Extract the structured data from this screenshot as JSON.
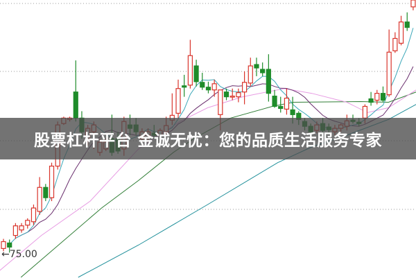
{
  "banner": {
    "text": "股票杠杆平台 金诚无忧：您的品质生活服务专家"
  },
  "chart_data": {
    "type": "candlestick",
    "title": "",
    "price_label": "75.00",
    "price_label_value": 75.0,
    "grid": true,
    "grid_levels": [
      81.7,
      91.7,
      101.8,
      111.7
    ],
    "ylim": [
      72.0,
      112.2
    ],
    "colors": {
      "up": "#d9342b",
      "down": "#1e8c2a",
      "ma5": "#3aa7b8",
      "ma10": "#6a2f6e",
      "ma20": "#e79be3",
      "ma30": "#2f7d35",
      "ma60": "#1f8f9a",
      "grid": "#999999",
      "label": "#333333"
    },
    "candles": [
      [
        76.0,
        77.4,
        75.6,
        77.0
      ],
      [
        76.8,
        77.3,
        75.4,
        76.2
      ],
      [
        77.9,
        79.7,
        77.4,
        79.3
      ],
      [
        78.7,
        79.7,
        78.3,
        79.3
      ],
      [
        79.4,
        80.4,
        78.9,
        80.1
      ],
      [
        79.9,
        82.4,
        79.4,
        81.9
      ],
      [
        81.4,
        86.4,
        80.9,
        84.9
      ],
      [
        84.9,
        85.4,
        82.9,
        83.4
      ],
      [
        83.4,
        88.5,
        82.9,
        88.0
      ],
      [
        88.0,
        94.5,
        87.5,
        94.0
      ],
      [
        94.2,
        95.2,
        94.0,
        95.0
      ],
      [
        94.8,
        95.2,
        94.5,
        95.0
      ],
      [
        98.8,
        103.4,
        94.5,
        95.0
      ],
      [
        95.0,
        96.0,
        92.0,
        93.0
      ],
      [
        92.0,
        94.0,
        91.0,
        93.5
      ],
      [
        93.0,
        94.5,
        90.5,
        94.0
      ],
      [
        90.0,
        92.0,
        89.5,
        91.5
      ],
      [
        90.5,
        92.0,
        90.2,
        91.5
      ],
      [
        92.0,
        95.5,
        89.5,
        90.0
      ],
      [
        92.0,
        93.0,
        89.8,
        90.2
      ],
      [
        90.5,
        95.2,
        89.5,
        94.5
      ],
      [
        94.0,
        95.5,
        92.5,
        93.5
      ],
      [
        94.0,
        95.0,
        92.5,
        93.0
      ],
      [
        92.0,
        93.5,
        91.0,
        93.0
      ],
      [
        92.5,
        93.5,
        91.5,
        93.0
      ],
      [
        92.8,
        94.0,
        92.0,
        92.5
      ],
      [
        92.5,
        93.5,
        92.0,
        93.2
      ],
      [
        93.0,
        95.2,
        92.5,
        93.9
      ],
      [
        94.7,
        98.6,
        94.0,
        95.4
      ],
      [
        95.7,
        100.6,
        95.0,
        99.3
      ],
      [
        99.7,
        101.3,
        98.1,
        99.5
      ],
      [
        99.8,
        106.4,
        99.3,
        104.1
      ],
      [
        102.6,
        103.5,
        99.6,
        100.3
      ],
      [
        100.2,
        101.6,
        99.1,
        99.5
      ],
      [
        99.5,
        100.3,
        98.6,
        99.1
      ],
      [
        99.1,
        100.6,
        98.1,
        100.0
      ],
      [
        95.5,
        99.1,
        93.2,
        99.1
      ],
      [
        98.8,
        99.3,
        97.6,
        98.1
      ],
      [
        98.1,
        99.3,
        97.6,
        98.2
      ],
      [
        98.1,
        99.3,
        97.3,
        98.7
      ],
      [
        98.8,
        101.8,
        97.0,
        100.2
      ],
      [
        100.1,
        103.8,
        99.6,
        102.6
      ],
      [
        102.8,
        103.8,
        101.1,
        102.3
      ],
      [
        102.1,
        103.1,
        101.1,
        101.6
      ],
      [
        102.1,
        104.3,
        97.4,
        98.6
      ],
      [
        98.2,
        99.1,
        96.5,
        96.7
      ],
      [
        96.7,
        98.1,
        95.8,
        96.4
      ],
      [
        96.3,
        99.3,
        95.5,
        97.9
      ],
      [
        96.2,
        98.1,
        94.2,
        95.5
      ],
      [
        95.7,
        96.0,
        94.0,
        94.8
      ],
      [
        94.5,
        95.0,
        93.2,
        93.8
      ],
      [
        93.8,
        94.2,
        92.5,
        93.0
      ],
      [
        93.2,
        94.5,
        92.8,
        94.0
      ],
      [
        94.2,
        95.0,
        92.8,
        93.2
      ],
      [
        93.7,
        94.2,
        92.8,
        93.3
      ],
      [
        93.0,
        94.0,
        92.5,
        93.5
      ],
      [
        93.5,
        94.2,
        93.0,
        94.0
      ],
      [
        93.8,
        95.5,
        93.2,
        94.6
      ],
      [
        94.7,
        95.5,
        94.2,
        94.5
      ],
      [
        94.4,
        95.0,
        93.8,
        94.2
      ],
      [
        95.0,
        97.0,
        94.2,
        96.7
      ],
      [
        97.8,
        98.8,
        96.8,
        97.3
      ],
      [
        97.6,
        99.1,
        97.0,
        98.6
      ],
      [
        98.6,
        99.6,
        97.3,
        97.6
      ],
      [
        98.4,
        107.9,
        98.1,
        104.6
      ],
      [
        104.8,
        107.5,
        104.5,
        106.6
      ],
      [
        105.9,
        109.9,
        105.6,
        109.0
      ],
      [
        109.0,
        110.4,
        107.7,
        108.2
      ],
      [
        111.2,
        112.2,
        110.7,
        112.2
      ]
    ],
    "candle_format": [
      "open",
      "high",
      "low",
      "close"
    ],
    "moving_averages": {
      "ma20": [
        [
          -0.6,
          72.8
        ],
        [
          6.3,
          77.9
        ],
        [
          14.4,
          82.9
        ],
        [
          22.4,
          90.5
        ],
        [
          29.3,
          94.5
        ],
        [
          33.9,
          96.5
        ],
        [
          39.7,
          98.1
        ],
        [
          46.6,
          99.3
        ],
        [
          51.2,
          98.6
        ],
        [
          57.0,
          97.3
        ],
        [
          60.4,
          95.8
        ],
        [
          63.9,
          96.5
        ],
        [
          68.5,
          99.1
        ]
      ],
      "ma30": [
        [
          2.9,
          71.8
        ],
        [
          16.3,
          81.9
        ],
        [
          22.4,
          85.9
        ],
        [
          28.2,
          90.0
        ],
        [
          31.6,
          92.0
        ],
        [
          37.7,
          95.0
        ],
        [
          44.6,
          96.7
        ],
        [
          48.1,
          97.3
        ],
        [
          59.3,
          97.4
        ],
        [
          63.9,
          97.3
        ],
        [
          68.5,
          98.8
        ]
      ],
      "ma60": [
        [
          12.4,
          71.8
        ],
        [
          22.4,
          76.5
        ],
        [
          33.9,
          82.4
        ],
        [
          45.5,
          88.5
        ],
        [
          51.2,
          90.8
        ],
        [
          57.0,
          92.5
        ],
        [
          63.9,
          94.8
        ],
        [
          68.5,
          97.0
        ]
      ]
    }
  }
}
